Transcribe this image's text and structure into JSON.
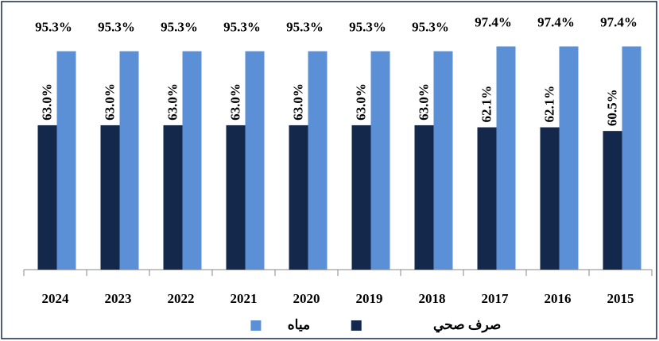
{
  "chart_data": {
    "type": "bar",
    "categories": [
      "2024",
      "2023",
      "2022",
      "2021",
      "2020",
      "2019",
      "2018",
      "2017",
      "2016",
      "2015"
    ],
    "series": [
      {
        "name": "صرف صحي",
        "color": "#14284b",
        "values": [
          63.0,
          63.0,
          63.0,
          63.0,
          63.0,
          63.0,
          63.0,
          62.1,
          62.1,
          60.5
        ],
        "value_labels": [
          "63.0%",
          "63.0%",
          "63.0%",
          "63.0%",
          "63.0%",
          "63.0%",
          "63.0%",
          "62.1%",
          "62.1%",
          "60.5%"
        ]
      },
      {
        "name": "مياه",
        "color": "#5b8fd6",
        "values": [
          95.3,
          95.3,
          95.3,
          95.3,
          95.3,
          95.3,
          95.3,
          97.4,
          97.4,
          97.4
        ],
        "value_labels": [
          "95.3%",
          "95.3%",
          "95.3%",
          "95.3%",
          "95.3%",
          "95.3%",
          "95.3%",
          "97.4%",
          "97.4%",
          "97.4%"
        ]
      }
    ],
    "ylim": [
      0,
      100
    ],
    "legend": "bottom"
  }
}
